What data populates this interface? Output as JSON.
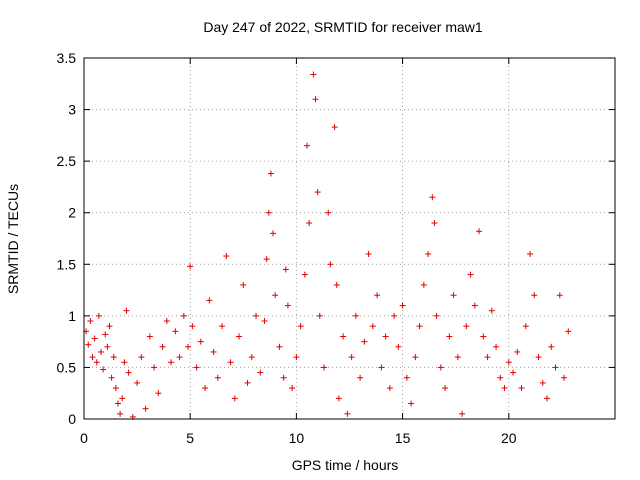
{
  "chart_data": {
    "type": "scatter",
    "title": "Day 247 of 2022, SRMTID for receiver maw1",
    "xlabel": "GPS time / hours",
    "ylabel": "SRMTID / TECUs",
    "xlim": [
      0,
      25
    ],
    "ylim": [
      0,
      3.5
    ],
    "x_ticks": [
      0,
      5,
      10,
      15,
      20
    ],
    "x_tick_labels": [
      "0",
      "5",
      "10",
      "15",
      "20"
    ],
    "y_ticks": [
      0,
      0.5,
      1,
      1.5,
      2,
      2.5,
      3,
      3.5
    ],
    "y_tick_labels": [
      "0",
      "0.5",
      "1",
      "1.5",
      "2",
      "2.5",
      "3",
      "3.5"
    ],
    "grid": true,
    "marker": "+",
    "series": [
      {
        "name": "SRMTID",
        "color": "#e00000",
        "points": [
          [
            0.1,
            0.85
          ],
          [
            0.2,
            0.72
          ],
          [
            0.3,
            0.95
          ],
          [
            0.4,
            0.6
          ],
          [
            0.5,
            0.78
          ],
          [
            0.6,
            0.55
          ],
          [
            0.7,
            1.0
          ],
          [
            0.8,
            0.65
          ],
          [
            0.9,
            0.48
          ],
          [
            1.0,
            0.82
          ],
          [
            1.1,
            0.7
          ],
          [
            1.2,
            0.9
          ],
          [
            1.3,
            0.4
          ],
          [
            1.4,
            0.6
          ],
          [
            1.5,
            0.3
          ],
          [
            1.6,
            0.15
          ],
          [
            1.7,
            0.05
          ],
          [
            1.8,
            0.2
          ],
          [
            1.9,
            0.55
          ],
          [
            2.0,
            1.05
          ],
          [
            2.1,
            0.45
          ],
          [
            2.3,
            0.02
          ],
          [
            2.5,
            0.35
          ],
          [
            2.7,
            0.6
          ],
          [
            2.9,
            0.1
          ],
          [
            3.1,
            0.8
          ],
          [
            3.3,
            0.5
          ],
          [
            3.5,
            0.25
          ],
          [
            3.7,
            0.7
          ],
          [
            3.9,
            0.95
          ],
          [
            4.1,
            0.55
          ],
          [
            4.3,
            0.85
          ],
          [
            4.5,
            0.6
          ],
          [
            4.7,
            1.0
          ],
          [
            4.9,
            0.7
          ],
          [
            5.0,
            1.48
          ],
          [
            5.1,
            0.9
          ],
          [
            5.3,
            0.5
          ],
          [
            5.5,
            0.75
          ],
          [
            5.7,
            0.3
          ],
          [
            5.9,
            1.15
          ],
          [
            6.1,
            0.65
          ],
          [
            6.3,
            0.4
          ],
          [
            6.5,
            0.9
          ],
          [
            6.7,
            1.58
          ],
          [
            6.9,
            0.55
          ],
          [
            7.1,
            0.2
          ],
          [
            7.3,
            0.8
          ],
          [
            7.5,
            1.3
          ],
          [
            7.7,
            0.35
          ],
          [
            7.9,
            0.6
          ],
          [
            8.1,
            1.0
          ],
          [
            8.3,
            0.45
          ],
          [
            8.5,
            0.95
          ],
          [
            8.6,
            1.55
          ],
          [
            8.7,
            2.0
          ],
          [
            8.8,
            2.38
          ],
          [
            8.9,
            1.8
          ],
          [
            9.0,
            1.2
          ],
          [
            9.2,
            0.7
          ],
          [
            9.4,
            0.4
          ],
          [
            9.5,
            1.45
          ],
          [
            9.6,
            1.1
          ],
          [
            9.8,
            0.3
          ],
          [
            10.0,
            0.6
          ],
          [
            10.2,
            0.9
          ],
          [
            10.4,
            1.4
          ],
          [
            10.5,
            2.65
          ],
          [
            10.6,
            1.9
          ],
          [
            10.8,
            3.34
          ],
          [
            10.9,
            3.1
          ],
          [
            11.0,
            2.2
          ],
          [
            11.1,
            1.0
          ],
          [
            11.3,
            0.5
          ],
          [
            11.5,
            2.0
          ],
          [
            11.6,
            1.5
          ],
          [
            11.8,
            2.83
          ],
          [
            11.9,
            1.3
          ],
          [
            12.0,
            0.2
          ],
          [
            12.2,
            0.8
          ],
          [
            12.4,
            0.05
          ],
          [
            12.6,
            0.6
          ],
          [
            12.8,
            1.0
          ],
          [
            13.0,
            0.4
          ],
          [
            13.2,
            0.75
          ],
          [
            13.4,
            1.6
          ],
          [
            13.6,
            0.9
          ],
          [
            13.8,
            1.2
          ],
          [
            14.0,
            0.5
          ],
          [
            14.2,
            0.8
          ],
          [
            14.4,
            0.3
          ],
          [
            14.6,
            1.0
          ],
          [
            14.8,
            0.7
          ],
          [
            15.0,
            1.1
          ],
          [
            15.2,
            0.4
          ],
          [
            15.4,
            0.15
          ],
          [
            15.6,
            0.6
          ],
          [
            15.8,
            0.9
          ],
          [
            16.0,
            1.3
          ],
          [
            16.2,
            1.6
          ],
          [
            16.4,
            2.15
          ],
          [
            16.5,
            1.9
          ],
          [
            16.6,
            1.0
          ],
          [
            16.8,
            0.5
          ],
          [
            17.0,
            0.3
          ],
          [
            17.2,
            0.8
          ],
          [
            17.4,
            1.2
          ],
          [
            17.6,
            0.6
          ],
          [
            17.8,
            0.05
          ],
          [
            18.0,
            0.9
          ],
          [
            18.2,
            1.4
          ],
          [
            18.4,
            1.1
          ],
          [
            18.6,
            1.82
          ],
          [
            18.8,
            0.8
          ],
          [
            19.0,
            0.6
          ],
          [
            19.2,
            1.05
          ],
          [
            19.4,
            0.7
          ],
          [
            19.6,
            0.4
          ],
          [
            19.8,
            0.3
          ],
          [
            20.0,
            0.55
          ],
          [
            20.2,
            0.45
          ],
          [
            20.4,
            0.65
          ],
          [
            20.6,
            0.3
          ],
          [
            20.8,
            0.9
          ],
          [
            21.0,
            1.6
          ],
          [
            21.2,
            1.2
          ],
          [
            21.4,
            0.6
          ],
          [
            21.6,
            0.35
          ],
          [
            21.8,
            0.2
          ],
          [
            22.0,
            0.7
          ],
          [
            22.2,
            0.5
          ],
          [
            22.4,
            1.2
          ],
          [
            22.6,
            0.4
          ],
          [
            22.8,
            0.85
          ]
        ]
      }
    ]
  }
}
